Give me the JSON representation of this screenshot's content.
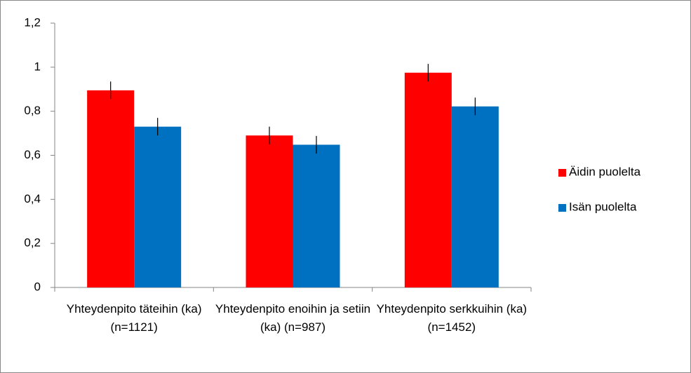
{
  "chart_data": {
    "type": "bar",
    "categories": [
      "Yhteydenpito täteihin (ka) (n=1121)",
      "Yhteydenpito enoihin ja setiin  (ka) (n=987)",
      "Yhteydenpito serkkuihin (ka) (n=1452)"
    ],
    "series": [
      {
        "name": "Äidin puolelta",
        "color": "#ff0000",
        "values": [
          0.895,
          0.69,
          0.975
        ],
        "errors": [
          0.04,
          0.04,
          0.04
        ]
      },
      {
        "name": "Isän puolelta",
        "color": "#0070c0",
        "values": [
          0.73,
          0.648,
          0.822
        ],
        "errors": [
          0.04,
          0.04,
          0.04
        ]
      }
    ],
    "ylim": [
      0,
      1.2
    ],
    "yticks": [
      0,
      {
        "value": 0.2,
        "label": "0,2"
      },
      {
        "value": 0.4,
        "label": "0,4"
      },
      {
        "value": 0.6,
        "label": "0,6"
      },
      {
        "value": 0.8,
        "label": "0,8"
      },
      1,
      {
        "value": 1.2,
        "label": "1,2"
      }
    ],
    "grid": false,
    "legend": "right"
  }
}
